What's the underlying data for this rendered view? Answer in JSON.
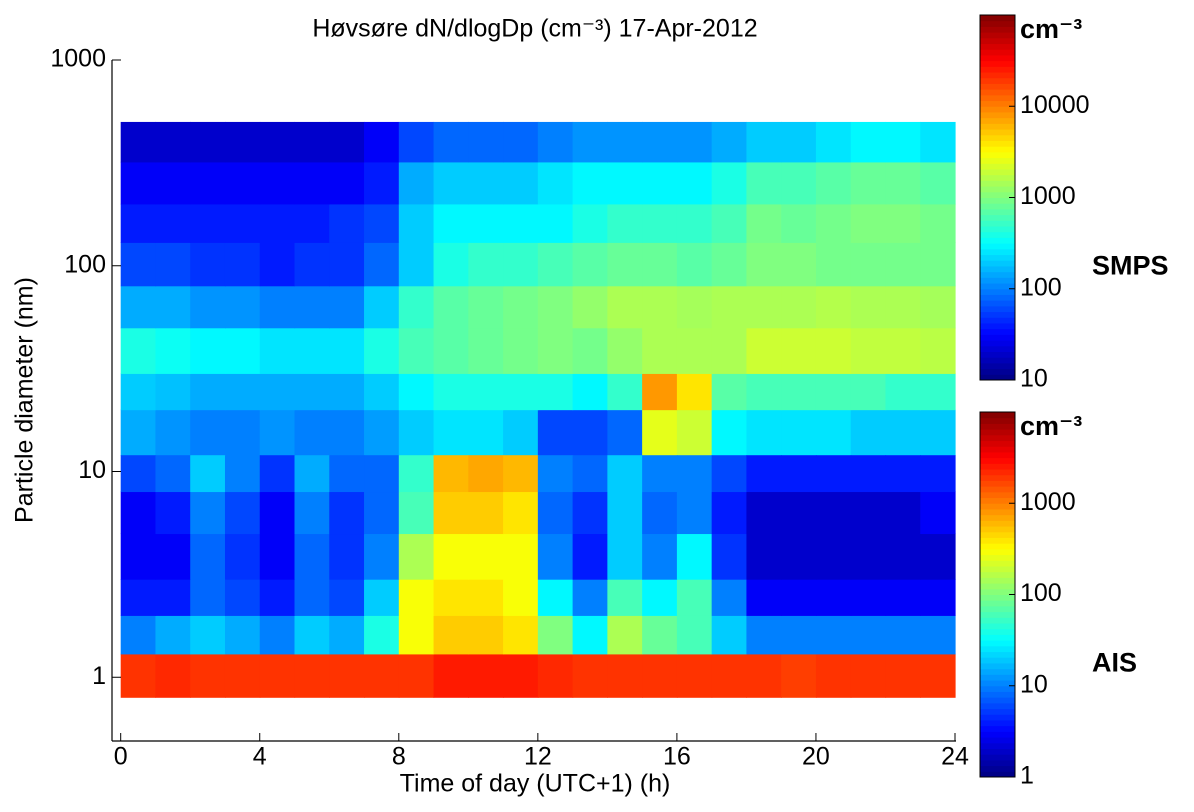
{
  "chart_data": {
    "type": "heatmap",
    "title": "Høvsøre dN/dlogDp (cm⁻³) 17-Apr-2012",
    "xlabel": "Time of day (UTC+1) (h)",
    "ylabel": "Particle diameter (nm)",
    "xlim": [
      -0.25,
      24
    ],
    "xticks": [
      0,
      4,
      8,
      12,
      16,
      20,
      24
    ],
    "ylim": [
      0.49,
      1000
    ],
    "yticks": [
      1,
      10,
      100,
      1000
    ],
    "yscale": "log",
    "colormap": "jet",
    "x_edges": [
      0,
      1,
      2,
      3,
      4,
      5,
      6,
      7,
      8,
      9,
      10,
      11,
      12,
      13,
      14,
      15,
      16,
      17,
      18,
      19,
      20,
      21,
      22,
      23,
      24
    ],
    "series": [
      {
        "name": "SMPS",
        "unit": "cm⁻³",
        "clim": [
          10,
          100000
        ],
        "cticks": [
          10,
          100,
          1000,
          10000
        ],
        "y_edges": [
          12,
          20,
          30,
          50,
          80,
          130,
          200,
          320,
          500
        ],
        "z": [
          [
            150,
            120,
            100,
            100,
            120,
            100,
            100,
            130,
            200,
            250,
            250,
            200,
            60,
            60,
            80,
            2500,
            2000,
            300,
            250,
            250,
            250,
            200,
            200,
            200
          ],
          [
            200,
            180,
            150,
            150,
            150,
            150,
            150,
            200,
            300,
            400,
            400,
            400,
            400,
            300,
            500,
            8000,
            4000,
            700,
            600,
            600,
            600,
            600,
            500,
            500
          ],
          [
            400,
            350,
            300,
            300,
            250,
            250,
            250,
            400,
            600,
            700,
            800,
            900,
            1000,
            900,
            1200,
            1500,
            1500,
            1500,
            2000,
            2000,
            2000,
            1800,
            1800,
            1700
          ],
          [
            150,
            150,
            120,
            120,
            100,
            100,
            100,
            200,
            500,
            700,
            800,
            900,
            1000,
            1200,
            1500,
            1500,
            1400,
            1500,
            1500,
            1500,
            1600,
            1500,
            1500,
            1400
          ],
          [
            60,
            60,
            50,
            50,
            40,
            50,
            50,
            80,
            200,
            400,
            500,
            500,
            600,
            700,
            800,
            800,
            700,
            800,
            1000,
            1000,
            900,
            900,
            900,
            900
          ],
          [
            40,
            40,
            40,
            40,
            40,
            40,
            50,
            60,
            200,
            300,
            300,
            300,
            300,
            400,
            500,
            500,
            500,
            600,
            900,
            800,
            900,
            1000,
            1000,
            900
          ],
          [
            30,
            30,
            30,
            30,
            30,
            30,
            30,
            40,
            150,
            200,
            200,
            200,
            250,
            300,
            300,
            300,
            300,
            400,
            600,
            600,
            700,
            800,
            800,
            700
          ],
          [
            20,
            20,
            20,
            20,
            20,
            20,
            20,
            30,
            60,
            80,
            80,
            80,
            100,
            120,
            120,
            120,
            120,
            150,
            200,
            200,
            250,
            300,
            300,
            250
          ]
        ]
      },
      {
        "name": "AIS",
        "unit": "cm⁻³",
        "clim": [
          1,
          10000
        ],
        "cticks": [
          1,
          10,
          100,
          1000
        ],
        "y_edges": [
          0.8,
          1.3,
          2,
          3,
          5,
          8,
          12
        ],
        "z": [
          [
            2000,
            2200,
            2000,
            2000,
            2000,
            2000,
            2000,
            2000,
            2000,
            2500,
            2500,
            2500,
            2200,
            2000,
            2000,
            2000,
            2000,
            2000,
            2000,
            1800,
            2000,
            2000,
            2000,
            2000
          ],
          [
            10,
            15,
            20,
            15,
            10,
            20,
            15,
            40,
            300,
            500,
            500,
            400,
            100,
            30,
            150,
            80,
            60,
            20,
            10,
            10,
            10,
            10,
            10,
            10
          ],
          [
            4,
            4,
            8,
            6,
            4,
            8,
            6,
            20,
            300,
            400,
            400,
            300,
            30,
            10,
            60,
            30,
            60,
            10,
            3,
            3,
            3,
            3,
            3,
            3
          ],
          [
            3,
            3,
            8,
            5,
            3,
            8,
            5,
            10,
            150,
            300,
            300,
            300,
            10,
            4,
            20,
            10,
            30,
            5,
            2,
            2,
            2,
            2,
            2,
            2
          ],
          [
            3,
            4,
            10,
            6,
            3,
            10,
            5,
            8,
            60,
            500,
            500,
            400,
            8,
            5,
            20,
            8,
            10,
            4,
            2,
            2,
            2,
            2,
            2,
            3
          ],
          [
            6,
            8,
            20,
            10,
            5,
            15,
            8,
            8,
            50,
            600,
            700,
            600,
            10,
            8,
            20,
            10,
            10,
            6,
            4,
            4,
            4,
            4,
            4,
            4
          ]
        ]
      }
    ]
  }
}
